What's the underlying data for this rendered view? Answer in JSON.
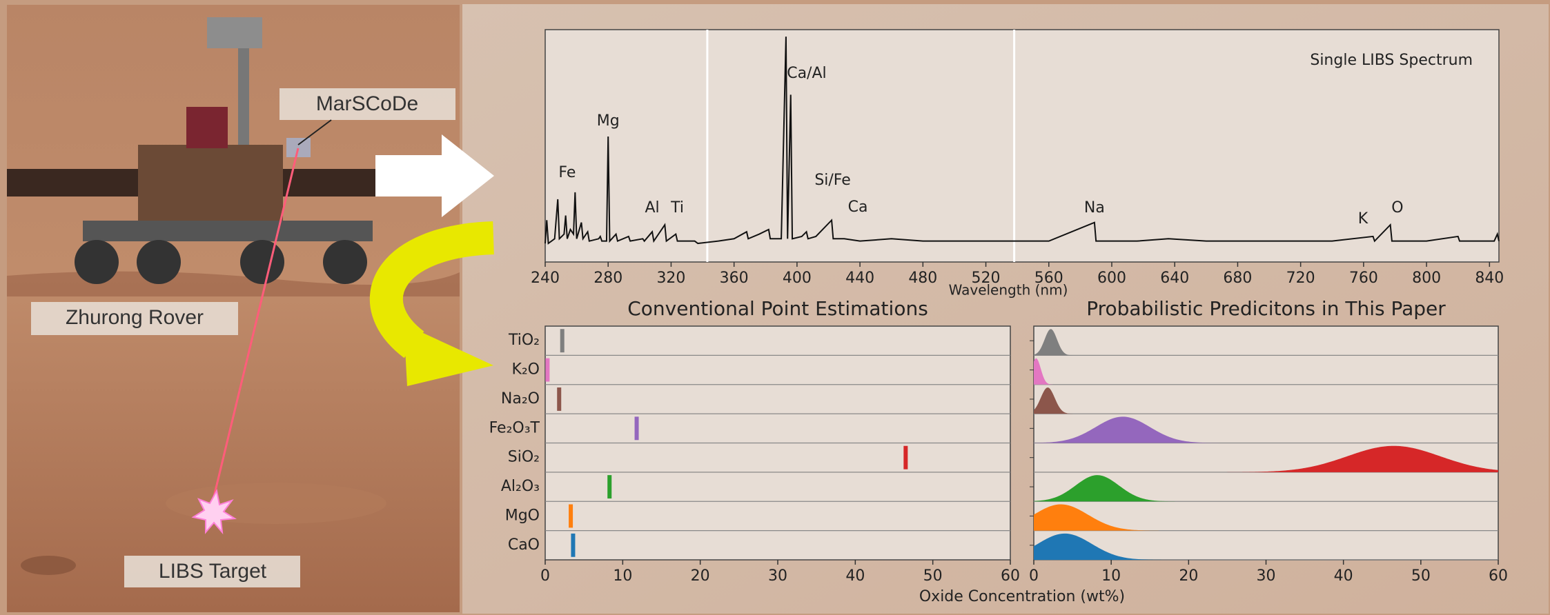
{
  "illustration": {
    "labels": [
      "MarSCoDe",
      "Zhurong Rover",
      "LIBS Target"
    ]
  },
  "chart_data": [
    {
      "type": "line",
      "title": "Single LIBS Spectrum",
      "xlabel": "Wavelength (nm)",
      "x": [
        240,
        241,
        242,
        246,
        248,
        249,
        252,
        253,
        254,
        256,
        258,
        259,
        260,
        263,
        264,
        267,
        268,
        274,
        275,
        276,
        279,
        280,
        281,
        285,
        286,
        293,
        294,
        302,
        303,
        308,
        309,
        316,
        317,
        323,
        324,
        335,
        337,
        350,
        360,
        368,
        369,
        376,
        382,
        383,
        390,
        393,
        394,
        396,
        397,
        403,
        406,
        407,
        412,
        422,
        423,
        430,
        440,
        460,
        480,
        500,
        520,
        540,
        560,
        589,
        590,
        616,
        636,
        660,
        700,
        740,
        766,
        767,
        777,
        778,
        800,
        820,
        821,
        843,
        845,
        846
      ],
      "values": [
        0.08,
        0.18,
        0.08,
        0.1,
        0.27,
        0.1,
        0.12,
        0.2,
        0.1,
        0.14,
        0.12,
        0.3,
        0.1,
        0.17,
        0.1,
        0.13,
        0.09,
        0.1,
        0.11,
        0.09,
        0.09,
        0.54,
        0.09,
        0.12,
        0.09,
        0.11,
        0.09,
        0.1,
        0.09,
        0.13,
        0.09,
        0.16,
        0.09,
        0.12,
        0.09,
        0.09,
        0.08,
        0.09,
        0.1,
        0.13,
        0.1,
        0.12,
        0.14,
        0.1,
        0.1,
        0.97,
        0.1,
        0.72,
        0.1,
        0.11,
        0.13,
        0.1,
        0.11,
        0.18,
        0.1,
        0.1,
        0.09,
        0.1,
        0.09,
        0.09,
        0.09,
        0.09,
        0.09,
        0.17,
        0.09,
        0.09,
        0.1,
        0.09,
        0.09,
        0.09,
        0.11,
        0.09,
        0.16,
        0.09,
        0.09,
        0.11,
        0.09,
        0.09,
        0.12,
        0.09
      ],
      "color": "#111111",
      "xlim": [
        240,
        846
      ],
      "ylim": [
        0,
        1
      ],
      "xticks": [
        240,
        280,
        320,
        360,
        400,
        440,
        480,
        520,
        560,
        600,
        640,
        680,
        720,
        760,
        800,
        840
      ],
      "channel_boundaries": [
        343,
        538
      ],
      "annotations": [
        {
          "text": "Fe",
          "x": 254
        },
        {
          "text": "Mg",
          "x": 280
        },
        {
          "text": "Al",
          "x": 308
        },
        {
          "text": "Ti",
          "x": 324
        },
        {
          "text": "Ca/Al",
          "x": 393
        },
        {
          "text": "Si/Fe",
          "x": 406
        },
        {
          "text": "Ca",
          "x": 422
        },
        {
          "text": "Na",
          "x": 589
        },
        {
          "text": "K",
          "x": 764
        },
        {
          "text": "O",
          "x": 778
        }
      ]
    },
    {
      "type": "point",
      "title": "Conventional Point Estimations",
      "xlabel": "Oxide Concentration (wt%)",
      "categories": [
        "TiO₂",
        "K₂O",
        "Na₂O",
        "Fe₂O₃T",
        "SiO₂",
        "Al₂O₃",
        "MgO",
        "CaO"
      ],
      "values": [
        2.2,
        0.3,
        1.8,
        11.8,
        46.5,
        8.3,
        3.3,
        3.6
      ],
      "colors": [
        "#7f7f7f",
        "#e377c2",
        "#8c564b",
        "#9467bd",
        "#d62728",
        "#2ca02c",
        "#ff7f0e",
        "#1f77b4"
      ],
      "xlim": [
        0,
        60
      ],
      "xticks": [
        0,
        10,
        20,
        30,
        40,
        50,
        60
      ]
    },
    {
      "type": "ridge",
      "title": "Probabilistic Predicitons in This Paper",
      "means": [
        2.2,
        0.3,
        1.8,
        11.5,
        46.5,
        8.2,
        3.5,
        4.0
      ],
      "stds": [
        0.8,
        0.6,
        0.9,
        3.5,
        6.0,
        2.8,
        3.5,
        3.5
      ],
      "colors": [
        "#7f7f7f",
        "#e377c2",
        "#8c564b",
        "#9467bd",
        "#d62728",
        "#2ca02c",
        "#ff7f0e",
        "#1f77b4"
      ],
      "xlim": [
        0,
        60
      ],
      "xticks": [
        0,
        10,
        20,
        30,
        40,
        50,
        60
      ]
    }
  ]
}
